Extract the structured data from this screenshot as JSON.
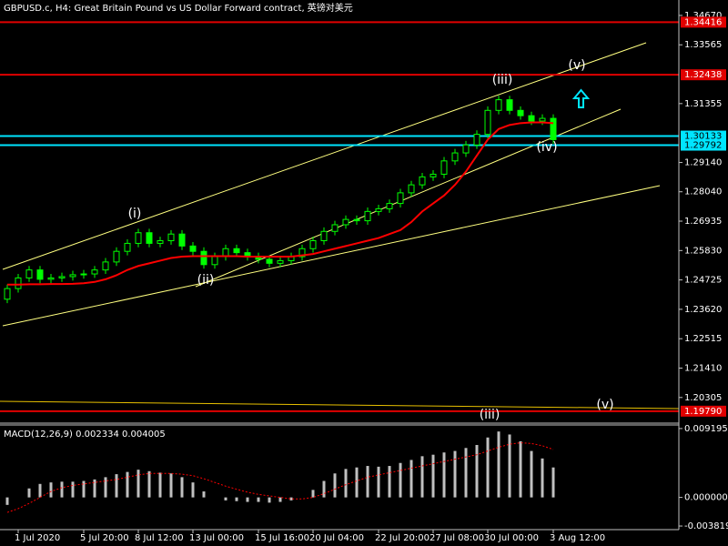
{
  "chart_data": {
    "type": "candlestick",
    "title": "GBPUSD.c, H4:  Great Britain Pound vs US Dollar Forward contract, 英镑对美元",
    "categories": [
      null,
      "1 Jul 2020",
      null,
      null,
      null,
      null,
      null,
      "5 Jul 20:00",
      null,
      null,
      null,
      null,
      "8 Jul 12:00",
      null,
      null,
      null,
      null,
      "13 Jul 00:00",
      null,
      null,
      null,
      null,
      null,
      "15 Jul 16:00",
      null,
      null,
      null,
      null,
      "20 Jul 04:00",
      null,
      null,
      null,
      null,
      null,
      "22 Jul 20:00",
      null,
      null,
      null,
      null,
      "27 Jul 08:00",
      null,
      null,
      null,
      null,
      "30 Jul 00:00",
      null,
      null,
      null,
      null,
      null,
      "3 Aug 12:00"
    ],
    "open": [
      1.24,
      1.244,
      1.248,
      1.251,
      1.2475,
      1.248,
      1.2485,
      1.2492,
      1.2495,
      1.251,
      1.254,
      1.258,
      1.261,
      1.265,
      1.261,
      1.262,
      1.2645,
      1.26,
      1.258,
      1.253,
      1.256,
      1.259,
      1.2575,
      1.256,
      1.255,
      1.2535,
      1.2545,
      1.256,
      1.259,
      1.262,
      1.2655,
      1.268,
      1.27,
      1.2695,
      1.273,
      1.274,
      1.276,
      1.28,
      1.283,
      1.286,
      1.287,
      1.292,
      1.295,
      1.298,
      1.302,
      1.311,
      1.315,
      1.311,
      1.309,
      1.307,
      1.308
    ],
    "high": [
      1.2455,
      1.2495,
      1.2525,
      1.2525,
      1.2495,
      1.25,
      1.2507,
      1.251,
      1.2525,
      1.2555,
      1.2595,
      1.2625,
      1.2665,
      1.2665,
      1.2635,
      1.266,
      1.266,
      1.2615,
      1.2595,
      1.2575,
      1.2605,
      1.2605,
      1.259,
      1.2575,
      1.2565,
      1.256,
      1.2575,
      1.2605,
      1.2635,
      1.267,
      1.2695,
      1.2715,
      1.2715,
      1.2745,
      1.2755,
      1.2775,
      1.2815,
      1.2845,
      1.2875,
      1.2885,
      1.2935,
      1.2965,
      1.2995,
      1.3035,
      1.3125,
      1.3165,
      1.3165,
      1.3125,
      1.3105,
      1.3095,
      1.3095
    ],
    "low": [
      1.2385,
      1.2425,
      1.2465,
      1.246,
      1.246,
      1.2465,
      1.247,
      1.2477,
      1.248,
      1.2495,
      1.2525,
      1.2565,
      1.2595,
      1.2595,
      1.2595,
      1.2605,
      1.2585,
      1.2565,
      1.2515,
      1.2515,
      1.2545,
      1.256,
      1.2545,
      1.2535,
      1.252,
      1.252,
      1.253,
      1.2545,
      1.2575,
      1.2605,
      1.264,
      1.2665,
      1.268,
      1.268,
      1.2715,
      1.2725,
      1.2745,
      1.2785,
      1.2815,
      1.2845,
      1.2855,
      1.2905,
      1.2935,
      1.2965,
      1.3005,
      1.3095,
      1.3095,
      1.3075,
      1.3055,
      1.3055,
      1.2985
    ],
    "close": [
      1.244,
      1.248,
      1.251,
      1.2475,
      1.248,
      1.2485,
      1.2492,
      1.2495,
      1.251,
      1.254,
      1.258,
      1.261,
      1.265,
      1.261,
      1.262,
      1.2645,
      1.26,
      1.258,
      1.253,
      1.256,
      1.259,
      1.2575,
      1.256,
      1.255,
      1.2535,
      1.2545,
      1.256,
      1.259,
      1.262,
      1.2655,
      1.268,
      1.27,
      1.2695,
      1.273,
      1.274,
      1.276,
      1.28,
      1.283,
      1.286,
      1.287,
      1.292,
      1.295,
      1.298,
      1.302,
      1.311,
      1.315,
      1.311,
      1.309,
      1.307,
      1.308,
      1.3
    ],
    "color": "#00ff00",
    "ma": {
      "color": "#ff0000",
      "values": [
        1.2455,
        1.2455,
        1.2456,
        1.2456,
        1.2457,
        1.2457,
        1.2458,
        1.246,
        1.2465,
        1.2475,
        1.249,
        1.251,
        1.2525,
        1.2535,
        1.2545,
        1.2555,
        1.256,
        1.2562,
        1.2562,
        1.2562,
        1.2562,
        1.2562,
        1.256,
        1.256,
        1.256,
        1.256,
        1.256,
        1.2565,
        1.257,
        1.258,
        1.259,
        1.26,
        1.261,
        1.262,
        1.263,
        1.2645,
        1.266,
        1.269,
        1.273,
        1.276,
        1.279,
        1.283,
        1.288,
        1.294,
        1.3,
        1.304,
        1.3055,
        1.3062,
        1.3065,
        1.3065,
        1.3062
      ]
    },
    "levels": [
      {
        "value": 1.34416,
        "color": "#e00000"
      },
      {
        "value": 1.32438,
        "color": "#e00000"
      },
      {
        "value": 1.30133,
        "color": "#00e5ff"
      },
      {
        "value": 1.29792,
        "color": "#00e5ff"
      },
      {
        "value": 1.1979,
        "label": "1.19790",
        "color": "#e00000"
      }
    ],
    "ylim": [
      1.1934,
      1.3525
    ],
    "yticks": [
      {
        "value": 1.3467,
        "label": "1.34670"
      },
      1.33565,
      1.31355,
      {
        "value": 1.2914,
        "label": "1.29140"
      },
      {
        "value": 1.2804,
        "label": "1.28040"
      },
      1.26935,
      {
        "value": 1.2583,
        "label": "1.25830"
      },
      1.24725,
      {
        "value": 1.2362,
        "label": "1.23620"
      },
      1.22515,
      {
        "value": 1.2141,
        "label": "1.21410"
      },
      1.20305
    ],
    "annotations": [
      "(i)",
      "(ii)",
      "(iii)",
      "(iv)",
      "(v)",
      "(iii)",
      "(v)"
    ],
    "macd": {
      "title": "MACD(12,26,9) 0.002334 0.004005",
      "color": "#c0c0c0",
      "signal_color": "#ff0000",
      "values": [
        -0.001,
        0.0,
        0.0012,
        0.0018,
        0.002,
        0.0021,
        0.0021,
        0.0022,
        0.0024,
        0.0027,
        0.0031,
        0.0034,
        0.0037,
        0.0035,
        0.0033,
        0.0032,
        0.0027,
        0.002,
        0.0008,
        0.0,
        -0.0004,
        -0.0005,
        -0.0006,
        -0.0006,
        -0.0007,
        -0.0006,
        -0.0004,
        0.0,
        0.001,
        0.0022,
        0.0032,
        0.0038,
        0.004,
        0.0042,
        0.0041,
        0.0042,
        0.0046,
        0.005,
        0.0055,
        0.0057,
        0.006,
        0.0062,
        0.0066,
        0.007,
        0.008,
        0.0088,
        0.0084,
        0.0075,
        0.0062,
        0.0052,
        0.004
      ],
      "signal": [
        -0.002,
        -0.0015,
        -0.0008,
        0.0,
        0.0008,
        0.0013,
        0.0016,
        0.0018,
        0.002,
        0.0022,
        0.0024,
        0.0027,
        0.003,
        0.0032,
        0.0032,
        0.0032,
        0.0031,
        0.0029,
        0.0025,
        0.002,
        0.0015,
        0.0011,
        0.0007,
        0.0004,
        0.0002,
        0.0,
        -0.0002,
        -0.0002,
        0.0,
        0.0005,
        0.0011,
        0.0017,
        0.0022,
        0.0027,
        0.003,
        0.0033,
        0.0036,
        0.0039,
        0.0042,
        0.0045,
        0.0048,
        0.0051,
        0.0054,
        0.0057,
        0.0062,
        0.0067,
        0.0071,
        0.0073,
        0.0072,
        0.0069,
        0.0064
      ],
      "ylim": [
        -0.0043,
        0.00955
      ],
      "yticks": [
        0.009195,
        {
          "value": 0,
          "label": "0.000000"
        },
        -0.003819
      ]
    }
  }
}
